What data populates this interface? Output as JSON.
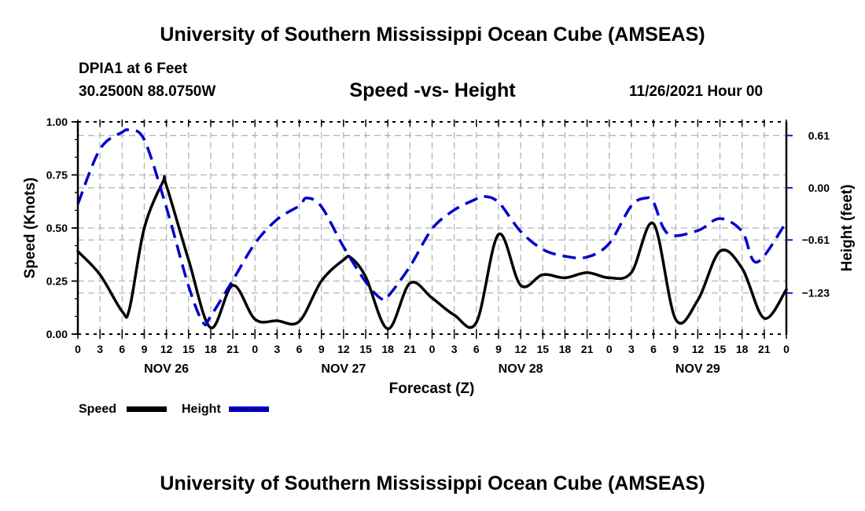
{
  "header": {
    "main_title": "University of Southern Mississippi Ocean Cube (AMSEAS)",
    "station": "DPIA1 at 6 Feet",
    "coords": "30.2500N  88.0750W",
    "subtitle": "Speed -vs- Height",
    "datetime": "11/26/2021 Hour 00",
    "footer_title": "University of Southern Mississippi Ocean Cube (AMSEAS)"
  },
  "colors": {
    "speed": "#000000",
    "height": "#0000cc",
    "grid": "#b4b4b4"
  },
  "chart_data": {
    "type": "line",
    "title": "Speed -vs- Height",
    "xlabel": "Forecast (Z)",
    "ylabel": "Speed (Knots)",
    "y2label": "Height (feet)",
    "xlim": [
      0,
      96
    ],
    "ylim": [
      0,
      1.0
    ],
    "y2lim": [
      -1.71,
      0.77
    ],
    "grid": true,
    "x_tick_hours": [
      0,
      3,
      6,
      9,
      12,
      15,
      18,
      21,
      24,
      27,
      30,
      33,
      36,
      39,
      42,
      45,
      48,
      51,
      54,
      57,
      60,
      63,
      66,
      69,
      72,
      75,
      78,
      81,
      84,
      87,
      90,
      93,
      96
    ],
    "x_tick_labels": [
      "0",
      "3",
      "6",
      "9",
      "12",
      "15",
      "18",
      "21",
      "0",
      "3",
      "6",
      "9",
      "12",
      "15",
      "18",
      "21",
      "0",
      "3",
      "6",
      "9",
      "12",
      "15",
      "18",
      "21",
      "0",
      "3",
      "6",
      "9",
      "12",
      "15",
      "18",
      "21",
      "0"
    ],
    "day_labels": [
      {
        "label": "NOV 26",
        "hour": 12
      },
      {
        "label": "NOV 27",
        "hour": 36
      },
      {
        "label": "NOV 28",
        "hour": 60
      },
      {
        "label": "NOV 29",
        "hour": 84
      }
    ],
    "y_ticks": [
      0,
      0.25,
      0.5,
      0.75,
      1.0
    ],
    "y_tick_labels": [
      "0.00",
      "0.25",
      "0.50",
      "0.75",
      "1.00"
    ],
    "y2_ticks": [
      0.61,
      0.0,
      -0.61,
      -1.23
    ],
    "y2_tick_labels": [
      "0.61",
      "0.00",
      "−0.61",
      "−1.23"
    ],
    "legend": {
      "placement": "bottom-left",
      "entries": [
        {
          "name": "Speed",
          "style": "solid"
        },
        {
          "name": "Height",
          "style": "dashed"
        }
      ]
    },
    "series": [
      {
        "name": "Speed",
        "axis": "left",
        "x": [
          0,
          3,
          6,
          7,
          9,
          11.5,
          12,
          15,
          18,
          21,
          24,
          27,
          30,
          33,
          36,
          37,
          39,
          42,
          45,
          48,
          51,
          54,
          57,
          60,
          63,
          66,
          69,
          72,
          75,
          78,
          81,
          84,
          87,
          90,
          93,
          96
        ],
        "values": [
          0.39,
          0.28,
          0.107,
          0.12,
          0.5,
          0.715,
          0.7,
          0.35,
          0.03,
          0.23,
          0.07,
          0.063,
          0.06,
          0.25,
          0.35,
          0.36,
          0.27,
          0.025,
          0.24,
          0.17,
          0.09,
          0.055,
          0.47,
          0.23,
          0.28,
          0.265,
          0.29,
          0.265,
          0.29,
          0.52,
          0.07,
          0.16,
          0.39,
          0.31,
          0.075,
          0.21
        ]
      },
      {
        "name": "Height",
        "axis": "right",
        "x": [
          0,
          3,
          6,
          7,
          9,
          12,
          15,
          17,
          18,
          21,
          24,
          27,
          30,
          31,
          33,
          36,
          39,
          41,
          42,
          45,
          48,
          51,
          54,
          55,
          57,
          60,
          63,
          66,
          69,
          72,
          75,
          77,
          78,
          80,
          84,
          87,
          90,
          92,
          96
        ],
        "values": [
          -0.19,
          0.45,
          0.65,
          0.67,
          0.56,
          -0.23,
          -1.15,
          -1.58,
          -1.5,
          -1.08,
          -0.65,
          -0.37,
          -0.21,
          -0.12,
          -0.22,
          -0.69,
          -1.1,
          -1.29,
          -1.27,
          -0.92,
          -0.48,
          -0.26,
          -0.13,
          -0.1,
          -0.17,
          -0.51,
          -0.72,
          -0.8,
          -0.81,
          -0.65,
          -0.21,
          -0.12,
          -0.17,
          -0.54,
          -0.5,
          -0.36,
          -0.51,
          -0.87,
          -0.4
        ]
      }
    ]
  }
}
